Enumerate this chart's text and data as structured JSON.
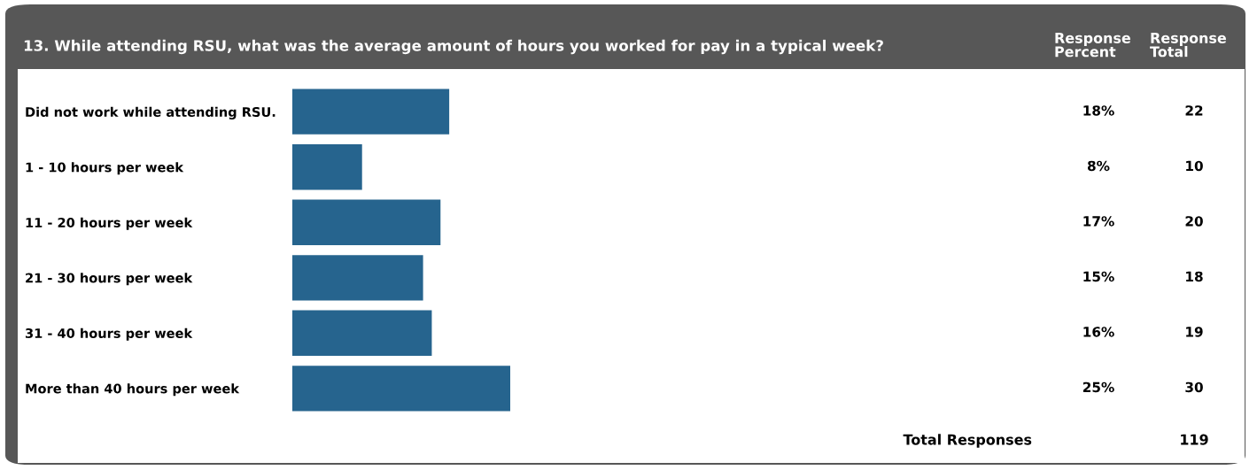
{
  "chart_data": {
    "type": "bar",
    "orientation": "horizontal",
    "title": "13. While attending RSU, what was the average amount of hours you worked for pay in a typical week?",
    "categories": [
      "Did not work while attending RSU.",
      "1 - 10 hours per week",
      "11 - 20 hours per week",
      "21 - 30 hours per week",
      "31 - 40 hours per week",
      "More than 40 hours per week"
    ],
    "values": [
      18,
      8,
      17,
      15,
      16,
      25
    ],
    "value_labels": [
      "18%",
      "8%",
      "17%",
      "15%",
      "16%",
      "25%"
    ],
    "color": "#26648e",
    "tick_labels": "y",
    "grid": false,
    "legend": false,
    "annotations": [
      "Response\nPercent",
      "Response\nTotal",
      "Total Responses",
      "119",
      "22",
      "10",
      "20",
      "18",
      "19",
      "30"
    ]
  }
}
